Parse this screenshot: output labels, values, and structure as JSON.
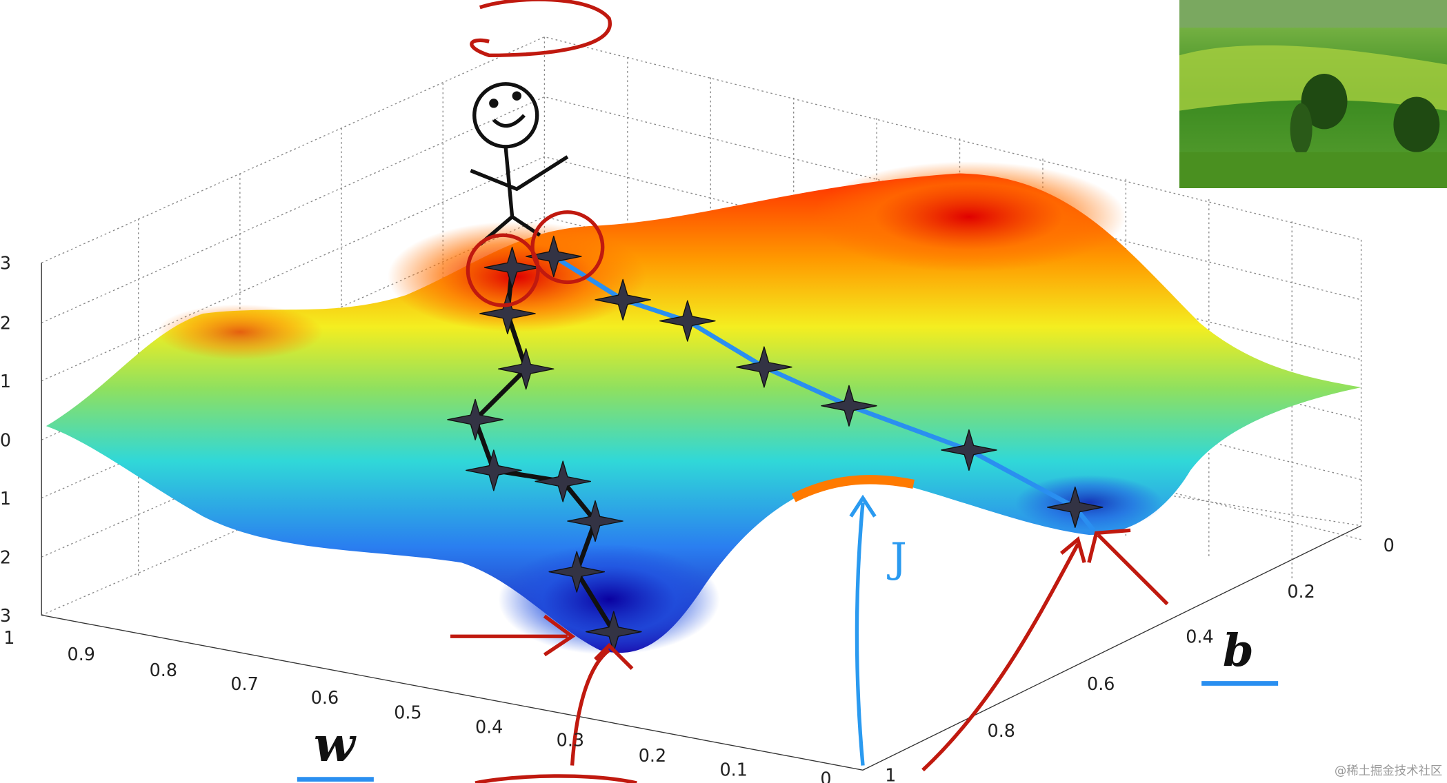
{
  "z_axis": {
    "ticks": [
      "3",
      "2",
      "1",
      "0",
      "1",
      "2",
      "3"
    ]
  },
  "w_axis": {
    "label": "w",
    "ticks": [
      "1",
      "0.9",
      "0.8",
      "0.7",
      "0.6",
      "0.5",
      "0.4",
      "0.3",
      "0.2",
      "0.1",
      "0"
    ]
  },
  "b_axis": {
    "label": "b",
    "ticks": [
      "0",
      "0.2",
      "0.4",
      "0.6",
      "0.8",
      "1"
    ]
  },
  "annotations": {
    "cost_label": "J"
  },
  "watermark": "@稀土掘金技术社区"
}
